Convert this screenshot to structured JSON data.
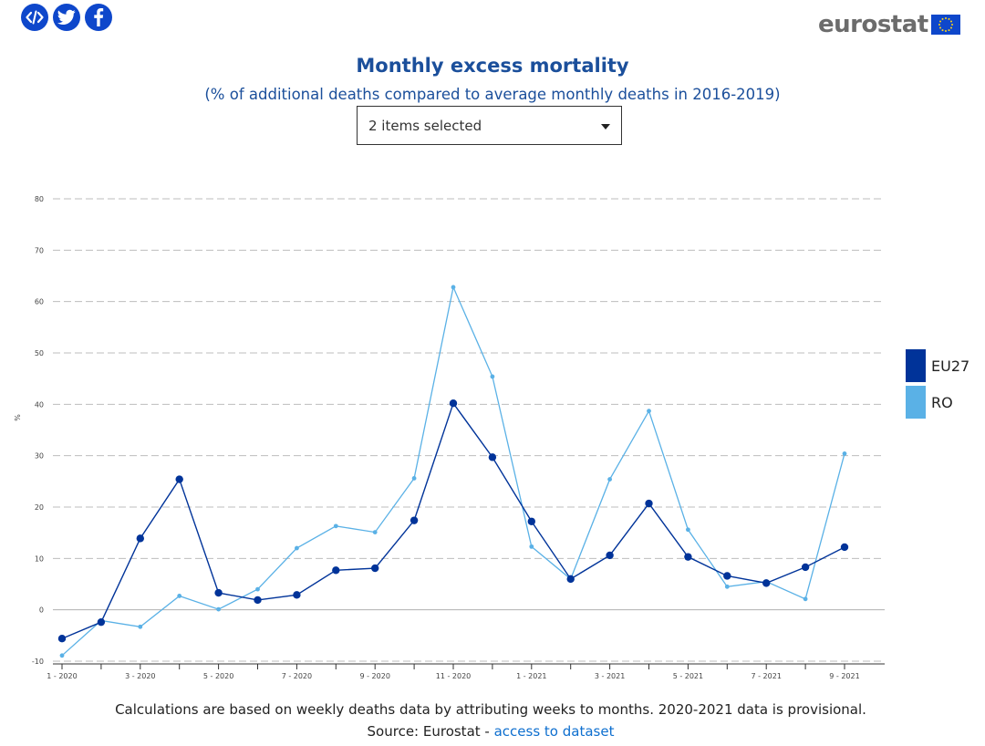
{
  "share": {
    "icons": [
      "embed-code-icon",
      "twitter-icon",
      "facebook-icon"
    ]
  },
  "logo": {
    "text": "eurostat"
  },
  "header": {
    "title": "Monthly excess mortality",
    "subtitle": "(% of additional deaths compared to average monthly deaths in 2016-2019)"
  },
  "selector": {
    "value": "2 items selected"
  },
  "chart_data": {
    "type": "line",
    "title": "Monthly excess mortality",
    "subtitle": "(% of additional deaths compared to average monthly deaths in 2016-2019)",
    "xlabel": "",
    "ylabel": "%",
    "ylim": [
      -10,
      80
    ],
    "yticks": [
      -10,
      0,
      10,
      20,
      30,
      40,
      50,
      60,
      70,
      80
    ],
    "grid": true,
    "categories": [
      "1 - 2020",
      "2 - 2020",
      "3 - 2020",
      "4 - 2020",
      "5 - 2020",
      "6 - 2020",
      "7 - 2020",
      "8 - 2020",
      "9 - 2020",
      "10 - 2020",
      "11 - 2020",
      "12 - 2020",
      "1 - 2021",
      "2 - 2021",
      "3 - 2021",
      "4 - 2021",
      "5 - 2021",
      "6 - 2021",
      "7 - 2021",
      "8 - 2021",
      "9 - 2021"
    ],
    "xtick_labels": [
      "1 - 2020",
      "",
      "3 - 2020",
      "",
      "5 - 2020",
      "",
      "7 - 2020",
      "",
      "9 - 2020",
      "",
      "11 - 2020",
      "",
      "1 - 2021",
      "",
      "3 - 2021",
      "",
      "5 - 2021",
      "",
      "7 - 2021",
      "",
      "9 - 2021"
    ],
    "series": [
      {
        "name": "EU27",
        "color": "#003399",
        "values": [
          -5.6,
          -2.4,
          13.9,
          25.4,
          3.3,
          1.9,
          2.9,
          7.7,
          8.1,
          17.4,
          40.2,
          29.7,
          17.2,
          6.0,
          10.6,
          20.7,
          10.3,
          6.6,
          5.2,
          8.3,
          12.2
        ]
      },
      {
        "name": "RO",
        "color": "#5ab1e6",
        "values": [
          -8.9,
          -2.1,
          -3.3,
          2.7,
          0.1,
          4.0,
          12.0,
          16.3,
          15.1,
          25.6,
          62.8,
          45.4,
          12.3,
          6.0,
          25.4,
          38.7,
          15.6,
          4.5,
          5.5,
          2.1,
          30.4
        ]
      }
    ],
    "legend_position": "right"
  },
  "footnote": "Calculations are based on weekly deaths data by attributing weeks to months. 2020-2021 data is provisional.",
  "source": {
    "prefix": "Source: Eurostat - ",
    "link_text": "access to dataset"
  }
}
